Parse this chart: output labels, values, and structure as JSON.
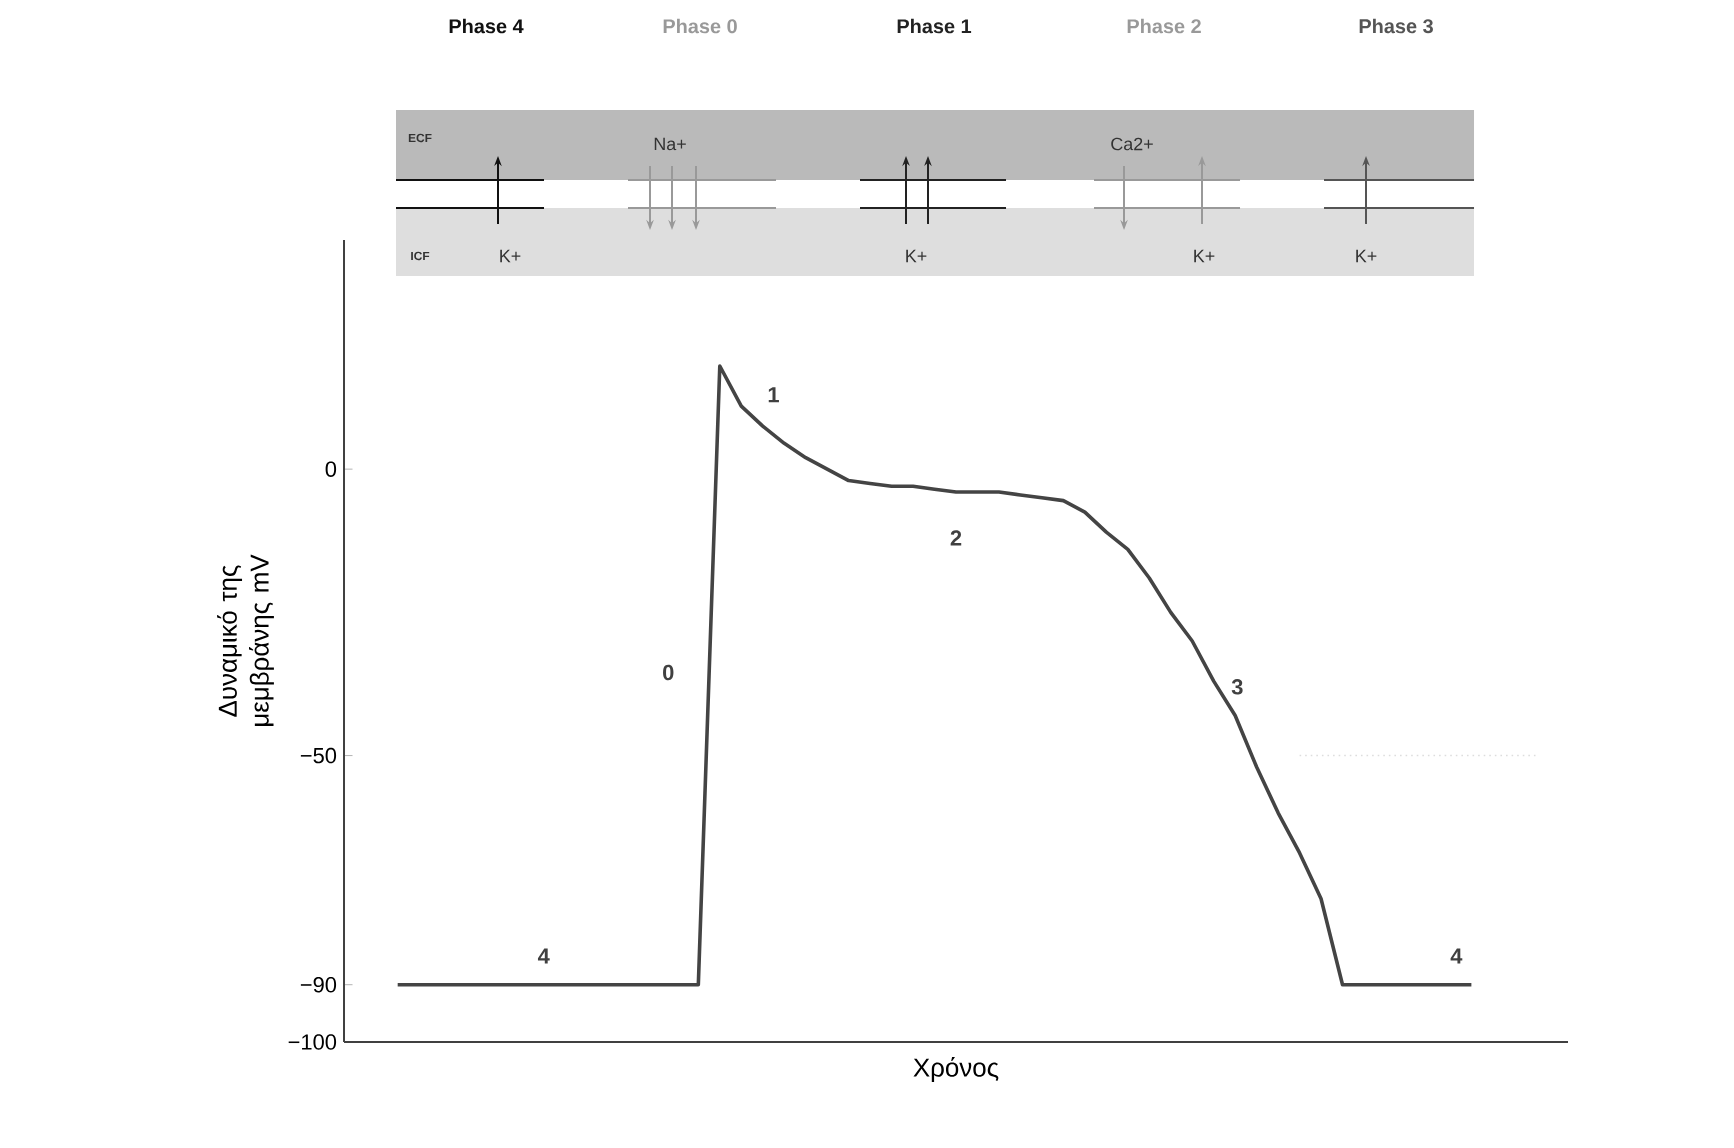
{
  "chart_data": [
    {
      "type": "other",
      "categories": [
        "Phase 4",
        "Phase 0",
        "Phase 1",
        "Phase 2",
        "Phase 3"
      ],
      "colors": [
        "#111111",
        "#999999",
        "#222222",
        "#999999",
        "#555555"
      ],
      "annotations": [
        "ECF",
        "ICF",
        "Na+",
        "K+",
        "K+",
        "Ca2+",
        "K+",
        "K+"
      ]
    },
    {
      "type": "line",
      "xlabel": "Χρόνος",
      "ylabel": "Δυναμικό της μεμβράνης mV",
      "categories": [
        null,
        null,
        null,
        null,
        null,
        null,
        null,
        null,
        null,
        null,
        null,
        null,
        null,
        null,
        null,
        null,
        null,
        null,
        null,
        null,
        null,
        null,
        null,
        null,
        null,
        null,
        null,
        null,
        null,
        null,
        null,
        null,
        null,
        null,
        null,
        null,
        null,
        null,
        null,
        null,
        null,
        null,
        null,
        null,
        null,
        null,
        null,
        null,
        null,
        null,
        null,
        null,
        null,
        null,
        null,
        null,
        null
      ],
      "ylim": [
        -100,
        40
      ],
      "yticks": [
        {
          "value": 0,
          "label": "0"
        },
        {
          "value": -50,
          "label": "−50"
        },
        {
          "value": -90,
          "label": "−90"
        },
        {
          "value": -100,
          "label": "−100"
        }
      ],
      "tick_labels": "y",
      "marker": "none",
      "grid": false,
      "series": [
        {
          "color": "#444444",
          "values": [
            null,
            null,
            -90,
            -90,
            -90,
            -90,
            -90,
            -90,
            -90,
            -90,
            -90,
            -90,
            -90,
            -90,
            -90,
            -90,
            -90,
            18,
            11,
            7.5,
            4.5,
            2,
            0,
            -2,
            -2.5,
            -3,
            -3,
            -3.5,
            -4,
            -4,
            -4,
            -4.5,
            -5,
            -5.5,
            -7.5,
            -11,
            -14,
            -19,
            -25,
            -30,
            -37,
            -43,
            -52,
            -60,
            -67,
            -75,
            -90,
            -90,
            -90,
            -90,
            -90,
            -90,
            -90,
            null,
            null,
            null,
            null
          ]
        },
        {
          "color": "#dddddd",
          "line_style": "dotted",
          "values": [
            null,
            null,
            null,
            null,
            null,
            null,
            null,
            null,
            null,
            null,
            null,
            null,
            null,
            null,
            null,
            null,
            null,
            null,
            null,
            null,
            null,
            null,
            null,
            null,
            null,
            null,
            null,
            null,
            null,
            null,
            null,
            null,
            null,
            null,
            null,
            null,
            null,
            null,
            null,
            null,
            null,
            null,
            null,
            null,
            -50,
            -50,
            -50,
            -50,
            -50,
            -50,
            -50,
            -50,
            -50,
            -50,
            -50,
            -50,
            null
          ]
        }
      ],
      "annotations": [
        "0",
        "1",
        "2",
        "3",
        "4",
        "4"
      ]
    }
  ]
}
